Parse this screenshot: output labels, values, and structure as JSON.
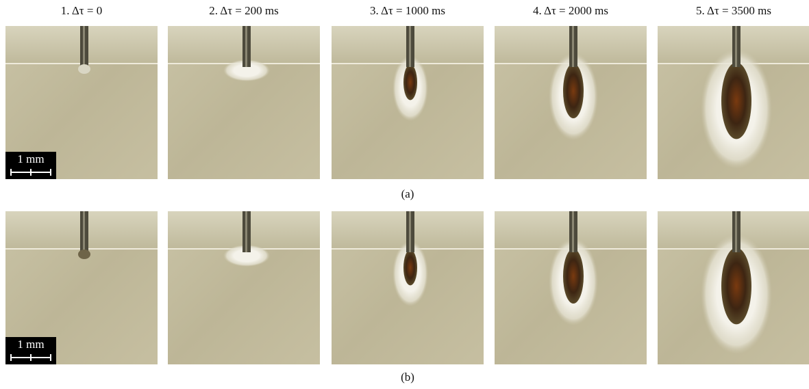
{
  "columns": [
    "1. Δτ = 0",
    "2. Δτ = 200 ms",
    "3. Δτ = 1000 ms",
    "4. Δτ = 2000 ms",
    "5. Δτ = 3500 ms"
  ],
  "rows": [
    {
      "label": "(a)",
      "scale_bar": "1 mm"
    },
    {
      "label": "(b)",
      "scale_bar": "1 mm"
    }
  ]
}
